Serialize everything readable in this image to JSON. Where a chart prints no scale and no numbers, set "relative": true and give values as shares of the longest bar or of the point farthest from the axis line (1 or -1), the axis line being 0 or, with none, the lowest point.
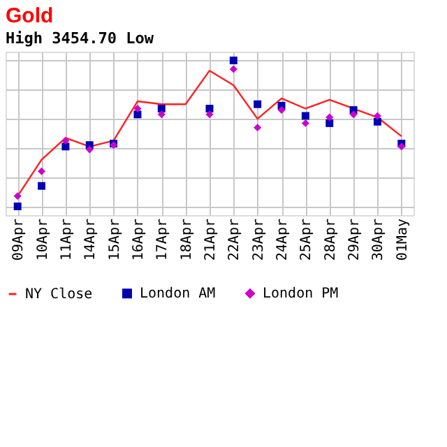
{
  "chart_data": {
    "type": "line",
    "title": "Gold",
    "annotations": [
      "High 3454.70 Low"
    ],
    "categories": [
      "09Apr",
      "10Apr",
      "11Apr",
      "14Apr",
      "15Apr",
      "16Apr",
      "17Apr",
      "18Apr",
      "21Apr",
      "22Apr",
      "23Apr",
      "24Apr",
      "25Apr",
      "28Apr",
      "29Apr",
      "30Apr",
      "01May"
    ],
    "relative": true,
    "grid": true,
    "legend": "bottom",
    "series": [
      {
        "name": "NY Close",
        "type": "line",
        "marker": "none",
        "color": "#ff2020",
        "values": [
          0.07,
          0.32,
          0.47,
          0.41,
          0.45,
          0.72,
          0.7,
          0.7,
          0.93,
          0.83,
          0.6,
          0.74,
          0.67,
          0.73,
          0.67,
          0.61,
          0.48
        ]
      },
      {
        "name": "London AM",
        "type": "scatter",
        "marker": "square",
        "color": "#0000b0",
        "values": [
          0.0,
          0.14,
          0.41,
          0.42,
          0.43,
          0.63,
          0.67,
          null,
          0.67,
          1.0,
          0.7,
          0.69,
          0.62,
          0.57,
          0.66,
          0.58,
          0.43
        ]
      },
      {
        "name": "London PM",
        "type": "scatter",
        "marker": "diamond",
        "color": "#cc00cc",
        "values": [
          0.07,
          0.24,
          0.45,
          0.39,
          0.42,
          0.67,
          0.63,
          null,
          0.63,
          0.94,
          0.54,
          0.66,
          0.57,
          0.61,
          0.63,
          0.62,
          0.41
        ]
      }
    ]
  }
}
